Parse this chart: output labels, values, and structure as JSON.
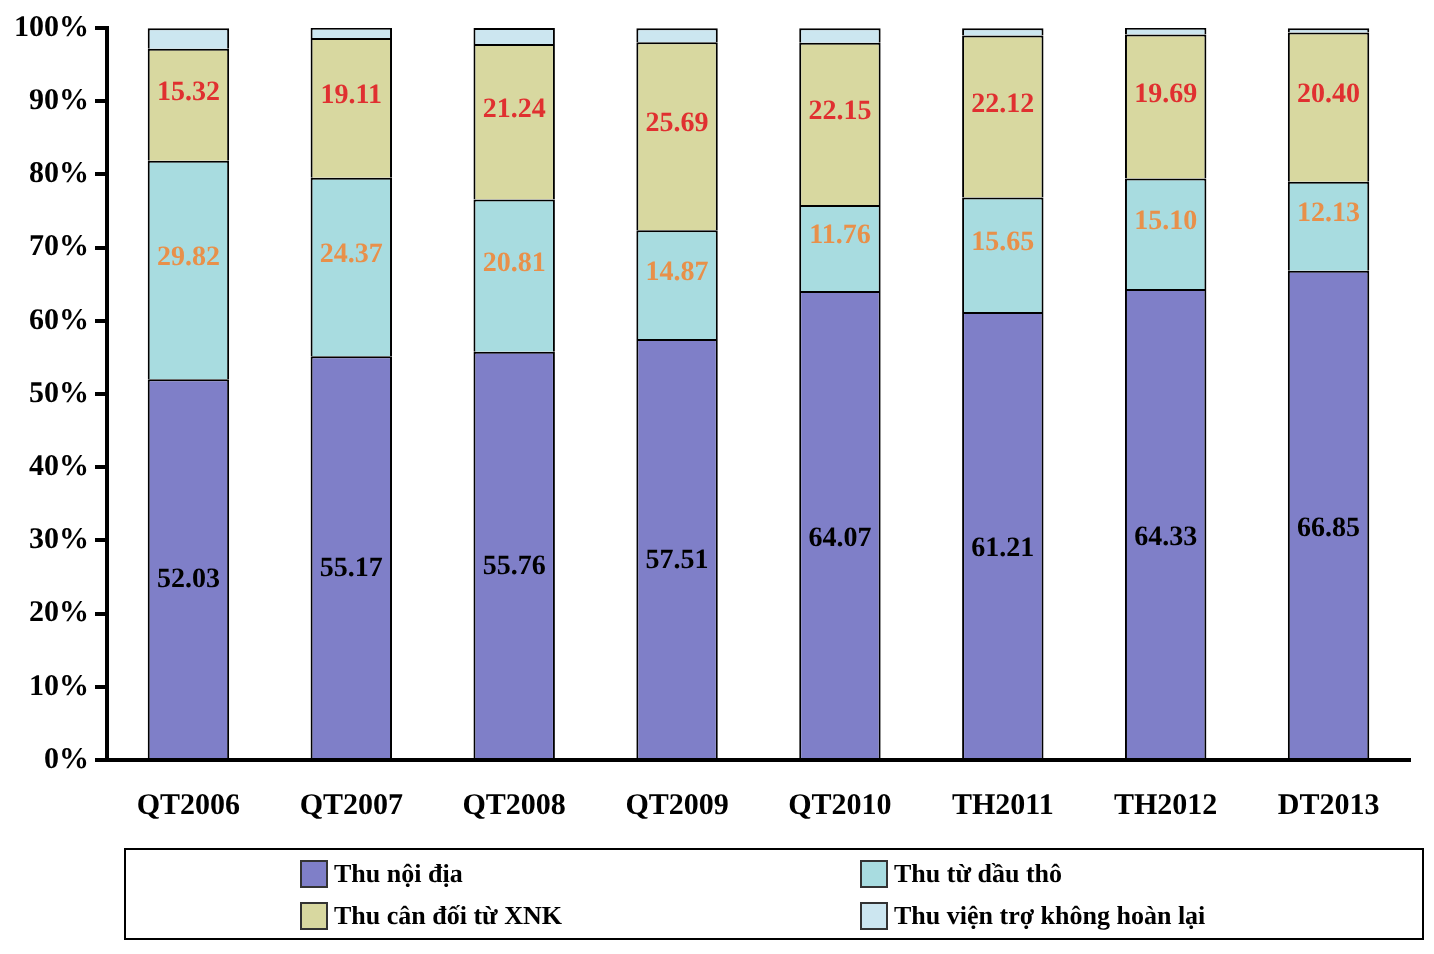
{
  "chart_data": {
    "type": "bar",
    "stacked": true,
    "categories": [
      "QT2006",
      "QT2007",
      "QT2008",
      "QT2009",
      "QT2010",
      "TH2011",
      "TH2012",
      "DT2013"
    ],
    "series": [
      {
        "name": "Thu nội địa",
        "color": "#7f7fc8",
        "values": [
          52.03,
          55.17,
          55.76,
          57.51,
          64.07,
          61.21,
          64.33,
          66.85
        ],
        "value_labels": [
          "52.03",
          "55.17",
          "55.76",
          "57.51",
          "64.07",
          "61.21",
          "64.33",
          "66.85"
        ]
      },
      {
        "name": "Thu từ dầu thô",
        "color": "#a8dce0",
        "values": [
          29.82,
          24.37,
          20.81,
          14.87,
          11.76,
          15.65,
          15.1,
          12.13
        ],
        "value_labels": [
          "29.82",
          "24.37",
          "20.81",
          "14.87",
          "11.76",
          "15.65",
          "15.10",
          "12.13"
        ]
      },
      {
        "name": "Thu cân đối từ XNK",
        "color": "#d8d8a0",
        "values": [
          15.32,
          19.11,
          21.24,
          25.69,
          22.15,
          22.12,
          19.69,
          20.4
        ],
        "value_labels": [
          "15.32",
          "19.11",
          "21.24",
          "25.69",
          "22.15",
          "22.12",
          "19.69",
          "20.40"
        ]
      },
      {
        "name": "Thu viện trợ không hoàn lại",
        "color": "#cce6f0",
        "values": [
          2.8,
          1.4,
          2.2,
          1.9,
          2.0,
          1.0,
          0.9,
          0.6
        ]
      }
    ],
    "ylim": [
      0,
      100
    ],
    "yticks": [
      {
        "value": 0,
        "label": "0%"
      },
      {
        "value": 10,
        "label": "10%"
      },
      {
        "value": 20,
        "label": "20%"
      },
      {
        "value": 30,
        "label": "30%"
      },
      {
        "value": 40,
        "label": "40%"
      },
      {
        "value": 50,
        "label": "50%"
      },
      {
        "value": 60,
        "label": "60%"
      },
      {
        "value": 70,
        "label": "70%"
      },
      {
        "value": 80,
        "label": "80%"
      },
      {
        "value": 90,
        "label": "90%"
      },
      {
        "value": 100,
        "label": "100%"
      }
    ],
    "grid": false,
    "legend": "bottom"
  }
}
